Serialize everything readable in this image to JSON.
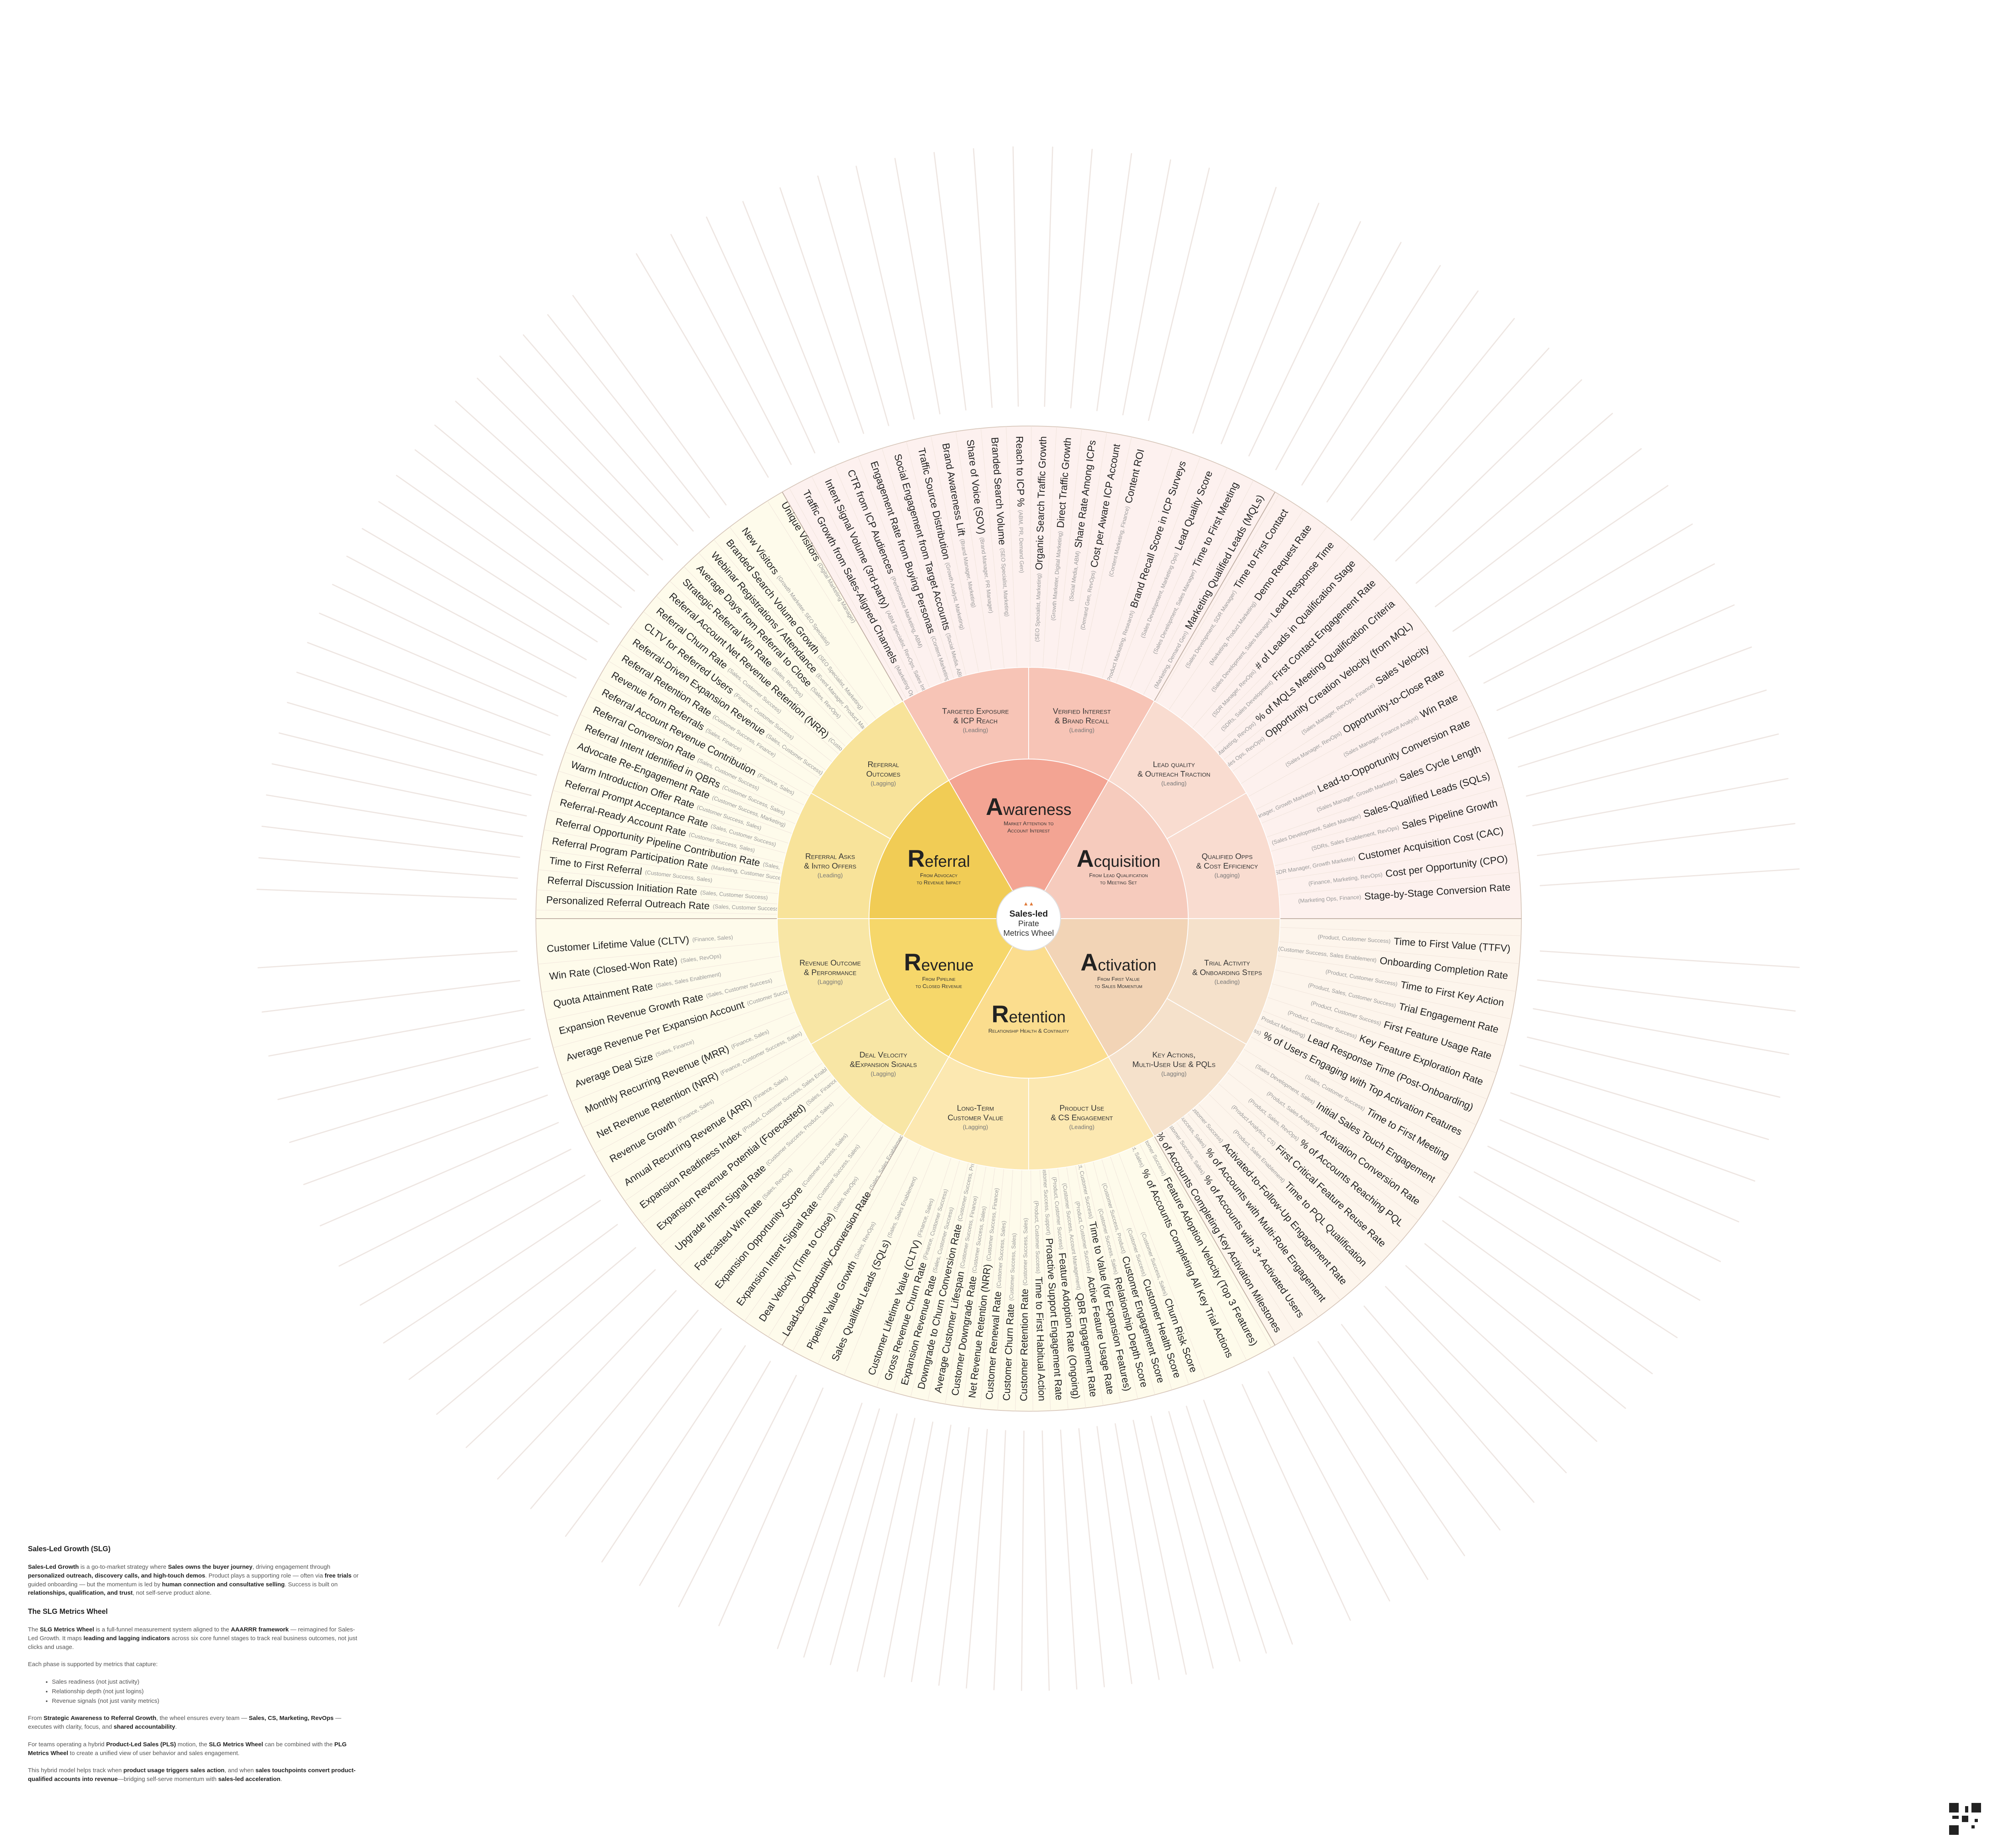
{
  "center": {
    "line1": "Sales-led",
    "line2": "Pirate",
    "line3": "Metrics Wheel"
  },
  "colors": {
    "awareness": "#f3a493",
    "awareness_light": "#f7c4b6",
    "awareness_outer": "#fdf1ef",
    "acquisition": "#f6cbbd",
    "acquisition_light": "#f9dcd0",
    "acquisition_outer": "#fdf1ee",
    "activation": "#f2d4b6",
    "activation_light": "#f5e1cb",
    "activation_outer": "#fdf5ec",
    "retention": "#fbdd8e",
    "retention_light": "#fce8b1",
    "retention_outer": "#fefbeb",
    "revenue": "#f6d76a",
    "revenue_light": "#f8e6a5",
    "revenue_outer": "#fefbeb",
    "referral": "#f1cc55",
    "referral_light": "#f8e39a",
    "referral_outer": "#fefbeb"
  },
  "stages": [
    {
      "id": "awareness",
      "cap": "A",
      "rest": "wareness",
      "sub1": "Market Attention to",
      "sub2": "Account Interest",
      "indicators": [
        {
          "l1": "Targeted Exposure",
          "l2": "& ICP Reach",
          "t": "(Leading)"
        },
        {
          "l1": "Verified Interest",
          "l2": "& Brand Recall",
          "t": "(Leading)"
        }
      ]
    },
    {
      "id": "acquisition",
      "cap": "A",
      "rest": "cquisition",
      "sub1": "From Lead Qualification",
      "sub2": "to Meeting Set",
      "indicators": [
        {
          "l1": "Lead quality",
          "l2": "& Outreach Traction",
          "t": "(Leading)"
        },
        {
          "l1": "Qualified Opps",
          "l2": "& Cost Efficiency",
          "t": "(Lagging)"
        }
      ]
    },
    {
      "id": "activation",
      "cap": "A",
      "rest": "ctivation",
      "sub1": "From First Value",
      "sub2": "to Sales Momentum",
      "indicators": [
        {
          "l1": "Trial Activity",
          "l2": "& Onboarding Steps",
          "t": "(Leading)"
        },
        {
          "l1": "Key Actions,",
          "l2": "Multi-User Use & PQLs",
          "t": "(Lagging)"
        }
      ]
    },
    {
      "id": "retention",
      "cap": "R",
      "rest": "etention",
      "sub1": "Relationship Health & Continuity",
      "sub2": "",
      "indicators": [
        {
          "l1": "Product Use",
          "l2": "& CS Engagement",
          "t": "(Leading)"
        },
        {
          "l1": "Long-Term",
          "l2": "Customer Value",
          "t": "(Lagging)"
        }
      ]
    },
    {
      "id": "revenue",
      "cap": "R",
      "rest": "evenue",
      "sub1": "From Pipeline",
      "sub2": "to Closed Revenue",
      "indicators": [
        {
          "l1": "Deal Velocity",
          "l2": "&Expansion Signals",
          "t": "(Lagging)"
        },
        {
          "l1": "Revenue Outcome",
          "l2": "& Performance",
          "t": "(Lagging)"
        }
      ]
    },
    {
      "id": "referral",
      "cap": "R",
      "rest": "eferral",
      "sub1": "From Advocacy",
      "sub2": "to Revenue Impact",
      "indicators": [
        {
          "l1": "Referral Asks",
          "l2": "& Intro Offers",
          "t": "(Leading)"
        },
        {
          "l1": "Referral",
          "l2": "Outcomes",
          "t": "(Lagging)"
        }
      ]
    }
  ],
  "metrics": {
    "awareness": [
      {
        "n": "Unique Visitors",
        "r": "(Digital Marketing Manager)"
      },
      {
        "n": "Traffic Growth from Sales-Aligned Channels",
        "r": "(Marketing Ops, Sales Enablement)"
      },
      {
        "n": "Intent Signal Volume (3rd-party)",
        "r": "(ABM Specialist, RevOps, Sales Intelligence)"
      },
      {
        "n": "CTR from ICP Audiences",
        "r": "(Performance Marketing, ABM)"
      },
      {
        "n": "Engagement Rate from Buying Personas",
        "r": "(Content Marketing, Demand Gen)"
      },
      {
        "n": "Social Engagement from Target Accounts",
        "r": "(Social Media, ABM)"
      },
      {
        "n": "Traffic Source Distribution",
        "r": "(Growth Analyst, Marketing)"
      },
      {
        "n": "Brand Awareness Lift",
        "r": "(Brand Manager, Marketing)"
      },
      {
        "n": "Share of Voice (SOV)",
        "r": "(Brand Manager, PR Manager)"
      },
      {
        "n": "Branded Search Volume",
        "r": "(SEO Specialist, Marketing)"
      },
      {
        "n": "Reach to ICP %",
        "r": "(ABM, PR, Demand Gen)"
      },
      {
        "n": "Organic Search Traffic Growth",
        "r": "(SEO Specialist, Marketing)"
      },
      {
        "n": "Direct Traffic Growth",
        "r": "(Growth Marketer, Digital Marketing)"
      },
      {
        "n": "Share Rate Among ICPs",
        "r": "(Social Media, ABM)"
      },
      {
        "n": "Cost per Aware ICP Account",
        "r": "(Demand Gen, RevOps)"
      },
      {
        "n": "Content ROI",
        "r": "(Content Marketing, Finance)"
      }
    ],
    "acquisition": [
      {
        "n": "Brand Recall Score in ICP Surveys",
        "r": "(Product Marketing, Research)"
      },
      {
        "n": "Lead Quality Score",
        "r": "(Sales Development, Marketing Ops)"
      },
      {
        "n": "Time to First Meeting",
        "r": "(Sales Development, Sales Manager)"
      },
      {
        "n": "Marketing Qualified Leads (MQLs)",
        "r": "(Marketing, Demand Gen)"
      },
      {
        "n": "Time to First Contact",
        "r": "(Sales Development, SDR Manager)"
      },
      {
        "n": "Demo Request Rate",
        "r": "(Marketing, Product Marketing)"
      },
      {
        "n": "Lead Response Time",
        "r": "(Sales Development, Sales Manager)"
      },
      {
        "n": "# of Leads in Qualification Stage",
        "r": "(SDR Manager, RevOps)"
      },
      {
        "n": "First Contact Engagement Rate",
        "r": "(SDRs, Sales Development)"
      },
      {
        "n": "% of MQLs Meeting Qualification Criteria",
        "r": "(Marketing, RevOps)"
      },
      {
        "n": "Opportunity Creation Velocity (from MQL)",
        "r": "(Sales Ops, RevOps)"
      },
      {
        "n": "Sales Velocity",
        "r": "(Sales Manager, RevOps, Finance)"
      },
      {
        "n": "Opportunity-to-Close Rate",
        "r": "(Sales Manager, RevOps)"
      },
      {
        "n": "Win Rate",
        "r": "(Sales Manager, Finance Analyst)"
      },
      {
        "n": "Lead-to-Opportunity Conversion Rate",
        "r": "(Sales Manager, Growth Marketer)"
      },
      {
        "n": "Sales Cycle Length",
        "r": "(Sales Manager, Growth Marketer)"
      },
      {
        "n": "Sales-Qualified Leads (SQLs)",
        "r": "(Sales Development, Sales Manager)"
      },
      {
        "n": "Sales Pipeline Growth",
        "r": "(SDRs, Sales Enablement, RevOps)"
      },
      {
        "n": "Customer Acquisition Cost (CAC)",
        "r": "(Sales Manager, SDR Manager, Growth Marketer)"
      },
      {
        "n": "Cost per Opportunity (CPO)",
        "r": "(Finance, Marketing, RevOps)"
      },
      {
        "n": "Stage-by-Stage Conversion Rate",
        "r": "(Marketing Ops, Finance)"
      }
    ],
    "activation": [
      {
        "n": "Time to First Value (TTFV)",
        "r": "(Product, Customer Success)"
      },
      {
        "n": "Onboarding Completion Rate",
        "r": "(Customer Success, Sales Enablement)"
      },
      {
        "n": "Time to First Key Action",
        "r": "(Product, Customer Success)"
      },
      {
        "n": "Trial Engagement Rate",
        "r": "(Product, Sales, Customer Success)"
      },
      {
        "n": "First Feature Usage Rate",
        "r": "(Product, Customer Success)"
      },
      {
        "n": "Key Feature Exploration Rate",
        "r": "(Product, Customer Success)"
      },
      {
        "n": "Lead Response Time (Post-Onboarding)",
        "r": "(Sales, Product Marketing)"
      },
      {
        "n": "% of Users Engaging with Top Activation Features",
        "r": "(Sales Development, Customer Success)"
      },
      {
        "n": "Time to First Meeting",
        "r": "(Sales, Customer Success)"
      },
      {
        "n": "Initial Sales Touch Engagement",
        "r": "(Sales Development, Sales)"
      },
      {
        "n": "Activation Conversion Rate",
        "r": "(Product, Sales Analytics)"
      },
      {
        "n": "% of Accounts Reaching PQL",
        "r": "(Product, Sales, RevOps)"
      },
      {
        "n": "First Critical Feature Reuse Rate",
        "r": "(Product Analytics, CS)"
      },
      {
        "n": "Time to PQL Qualification",
        "r": "(Product, Sales Enablement)"
      },
      {
        "n": "Activated-to-Follow-Up Engagement Rate",
        "r": "(Sales, Customer Success)"
      },
      {
        "n": "% of Accounts with Multi-Role Engagement",
        "r": "(Product, Customer Success, Sales)"
      },
      {
        "n": "% of Accounts with 3+ Activated Users",
        "r": "(Customer Success, Sales)"
      },
      {
        "n": "% of Accounts Completing Key Activation Milestones",
        "r": "(Product, CS, Sales)"
      },
      {
        "n": "Feature Adoption Velocity (Top 3 Features)",
        "r": "(Product, Customer Success)"
      },
      {
        "n": "% of Accounts Completing All Key Trial Actions",
        "r": "(Product, Sales)"
      }
    ],
    "retention": [
      {
        "n": "Churn Risk Score",
        "r": "(Customer Success, Sales)"
      },
      {
        "n": "Customer Health Score",
        "r": "(Customer Success)"
      },
      {
        "n": "Customer Engagement Score",
        "r": "(Customer Success, Product)"
      },
      {
        "n": "Relationship Depth Score",
        "r": "(Customer Success, Sales)"
      },
      {
        "n": "Time to Value (for Expansion Features)",
        "r": "(Product, Customer Success)"
      },
      {
        "n": "Active Feature Usage Rate",
        "r": "(Product, Customer Success)"
      },
      {
        "n": "QBR Engagement Rate",
        "r": "(Customer Success, Account Management)"
      },
      {
        "n": "Feature Adoption Rate (Ongoing)",
        "r": "(Product, Customer Success)"
      },
      {
        "n": "Proactive Support Engagement Rate",
        "r": "(Customer Success, Support)"
      },
      {
        "n": "Time to First Habitual Action",
        "r": "(Product, Customer Success)"
      },
      {
        "n": "Customer Retention Rate",
        "r": "(Customer Success, Sales)"
      },
      {
        "n": "Customer Churn Rate",
        "r": "(Customer Success, Sales)"
      },
      {
        "n": "Customer Renewal Rate",
        "r": "(Customer Success, Sales)"
      },
      {
        "n": "Net Revenue Retention (NRR)",
        "r": "(Customer Success, Finance)"
      },
      {
        "n": "Customer Downgrade Rate",
        "r": "(Customer Success, Sales)"
      },
      {
        "n": "Average Customer Lifespan",
        "r": "(Customer Success, Finance)"
      },
      {
        "n": "Downgrade to Churn Conversion Rate",
        "r": "(Customer Success, Product)"
      },
      {
        "n": "Expansion Revenue Rate",
        "r": "(Sales, Customer Success)"
      },
      {
        "n": "Gross Revenue Churn Rate",
        "r": "(Finance, Customer Success)"
      },
      {
        "n": "Customer Lifetime Value (CLTV)",
        "r": "(Finance, Sales)"
      }
    ],
    "revenue": [
      {
        "n": "Sales Qualified Leads (SQLs)",
        "r": "(Sales, Sales Enablement)"
      },
      {
        "n": "Pipeline Value Growth",
        "r": "(Sales, RevOps)"
      },
      {
        "n": "Lead-to-Opportunity Conversion Rate",
        "r": "(Sales, Sales Enablement)"
      },
      {
        "n": "Deal Velocity (Time to Close)",
        "r": "(Sales, RevOps)"
      },
      {
        "n": "Expansion Intent Signal Rate",
        "r": "(Customer Success, Sales)"
      },
      {
        "n": "Expansion Opportunity Score",
        "r": "(Customer Success, Sales)"
      },
      {
        "n": "Forecasted Win Rate",
        "r": "(Sales, RevOps)"
      },
      {
        "n": "Upgrade Intent Signal Rate",
        "r": "(Customer Success, Product, Sales)"
      },
      {
        "n": "Expansion Revenue Potential (Forecasted)",
        "r": "(Sales, Finance)"
      },
      {
        "n": "Expansion Readiness Index",
        "r": "(Product, Customer Success, Sales Enablement)"
      },
      {
        "n": "Annual Recurring Revenue (ARR)",
        "r": "(Finance, Sales)"
      },
      {
        "n": "Revenue Growth",
        "r": "(Finance, Sales)"
      },
      {
        "n": "Net Revenue Retention (NRR)",
        "r": "(Finance, Customer Success, Sales)"
      },
      {
        "n": "Monthly Recurring Revenue (MRR)",
        "r": "(Finance, Sales)"
      },
      {
        "n": "Average Deal Size",
        "r": "(Sales, Finance)"
      },
      {
        "n": "Average Revenue Per Expansion Account",
        "r": "(Customer Success, Sales)"
      },
      {
        "n": "Expansion Revenue Growth Rate",
        "r": "(Sales, Customer Success)"
      },
      {
        "n": "Quota Attainment Rate",
        "r": "(Sales, Sales Enablement)"
      },
      {
        "n": "Win Rate (Closed-Won Rate)",
        "r": "(Sales, RevOps)"
      },
      {
        "n": "Customer Lifetime Value (CLTV)",
        "r": "(Finance, Sales)"
      }
    ],
    "referral": [
      {
        "n": "Personalized Referral Outreach Rate",
        "r": "(Sales, Customer Success)"
      },
      {
        "n": "Referral Discussion Initiation Rate",
        "r": "(Sales, Customer Success)"
      },
      {
        "n": "Time to First Referral",
        "r": "(Customer Success, Sales)"
      },
      {
        "n": "Referral Program Participation Rate",
        "r": "(Marketing, Customer Success)"
      },
      {
        "n": "Referral Opportunity Pipeline Contribution Rate",
        "r": "(Sales, RevOps, Finance)"
      },
      {
        "n": "Referral-Ready Account Rate",
        "r": "(Customer Success, Sales)"
      },
      {
        "n": "Referral Prompt Acceptance Rate",
        "r": "(Sales, Customer Success)"
      },
      {
        "n": "Warm Introduction Offer Rate",
        "r": "(Customer Success, Sales)"
      },
      {
        "n": "Advocate Re-Engagement Rate",
        "r": "(Customer Success, Marketing)"
      },
      {
        "n": "Referral Intent Identified in QBRs",
        "r": "(Customer Success, Sales)"
      },
      {
        "n": "Referral Conversion Rate",
        "r": "(Sales, Customer Success)"
      },
      {
        "n": "Referral Account Revenue Contribution",
        "r": "(Finance, Sales)"
      },
      {
        "n": "Revenue from Referrals",
        "r": "(Sales, Finance)"
      },
      {
        "n": "Referral Retention Rate",
        "r": "(Customer Success, Finance)"
      },
      {
        "n": "Referral-Driven Expansion Revenue",
        "r": "(Sales, Customer Success)"
      },
      {
        "n": "CLTV for Referred Users",
        "r": "(Finance, Customer Success)"
      },
      {
        "n": "Referral Churn Rate",
        "r": "(Sales, Customer Success)"
      },
      {
        "n": "Referral Account Net Revenue Retention (NRR)",
        "r": "(Customer Success, Finance)"
      },
      {
        "n": "Strategic Referral Win Rate",
        "r": "(Sales, RevOps)"
      },
      {
        "n": "Average Days from Referral to Close",
        "r": "(Sales, RevOps)"
      },
      {
        "n": "Webinar Registrations / Attendance",
        "r": "(Event Manager, Product Marketing)"
      },
      {
        "n": "Branded Search Volume Growth",
        "r": "(SEO Specialist, Marketing)"
      },
      {
        "n": "New Visitors",
        "r": "(Growth Marketer, SEO Specialist)"
      }
    ]
  },
  "panel": {
    "title1": "Sales-Led Growth (SLG)",
    "p1": "Sales-Led Growth is a go-to-market strategy where Sales owns the buyer journey, driving engagement through personalized outreach, discovery calls, and high-touch demos. Product plays a supporting role — often via free trials or guided onboarding — but the momentum is led by human connection and consultative selling. Success is built on relationships, qualification, and trust, not self-serve product alone.",
    "title2": "The SLG Metrics Wheel",
    "p2": "The SLG Metrics Wheel is a full-funnel measurement system aligned to the AAARRR framework — reimagined for Sales-Led Growth. It maps leading and lagging indicators across six core funnel stages to track real business outcomes, not just clicks and usage.",
    "p3": "Each phase is supported by metrics that capture:",
    "bullets": [
      "Sales readiness (not just activity)",
      "Relationship depth (not just logins)",
      "Revenue signals (not just vanity metrics)"
    ],
    "p4": "From Strategic Awareness to Referral Growth, the wheel ensures every team — Sales, CS, Marketing, RevOps — executes with clarity, focus, and shared accountability.",
    "p5": "For teams operating a hybrid Product-Led Sales (PLS) motion, the SLG Metrics Wheel can be combined with the PLG Metrics Wheel to create a unified view of user behavior and sales engagement.",
    "p6": "This hybrid model helps track when product usage triggers sales action, and when sales touchpoints convert product-qualified accounts into revenue—bridging self-serve momentum with sales-led acceleration."
  }
}
